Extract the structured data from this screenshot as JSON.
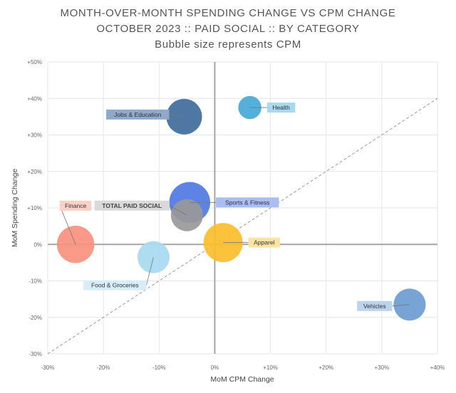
{
  "chart_data": {
    "type": "scatter",
    "title": "MONTH-OVER-MONTH SPENDING CHANGE VS CPM CHANGE",
    "subtitle": "OCTOBER 2023 :: PAID SOCIAL :: BY CATEGORY",
    "note": "Bubble size represents CPM",
    "xlabel": "MoM CPM Change",
    "ylabel": "MoM Spending Change",
    "xlim": [
      -30,
      40
    ],
    "ylim": [
      -30,
      50
    ],
    "x_ticks": [
      "-30%",
      "-20%",
      "-10%",
      "0%",
      "+10%",
      "+20%",
      "+30%",
      "+40%"
    ],
    "y_ticks": [
      "-30%",
      "-20%",
      "-10%",
      "0%",
      "+10%",
      "+20%",
      "+30%",
      "+40%",
      "+50%"
    ],
    "diagonal_reference": true,
    "points": [
      {
        "label": "Jobs & Education",
        "x": -5.5,
        "y": 35,
        "size": 20,
        "color": "#3f6b9b",
        "label_bg": "#8ea9c9",
        "label_side": "left"
      },
      {
        "label": "Health",
        "x": 6.3,
        "y": 37.5,
        "size": 13,
        "color": "#46a9d6",
        "label_bg": "#a9d9ee",
        "label_side": "right"
      },
      {
        "label": "Sports & Fitness",
        "x": -4.5,
        "y": 11.5,
        "size": 23,
        "color": "#4f78e3",
        "label_bg": "#a9bdf3",
        "label_side": "right"
      },
      {
        "label": "TOTAL PAID SOCIAL",
        "x": -5,
        "y": 8,
        "size": 18,
        "color": "#999999",
        "label_bg": "#d9d9d9",
        "label_side": "left"
      },
      {
        "label": "Finance",
        "x": -25,
        "y": 0,
        "size": 21,
        "color": "#f7917d",
        "label_bg": "#fbd0c6",
        "label_side": "above"
      },
      {
        "label": "Food & Groceries",
        "x": -11,
        "y": -3.5,
        "size": 18,
        "color": "#a7d9f0",
        "label_bg": "#d6eef9",
        "label_side": "below-left"
      },
      {
        "label": "Apparel",
        "x": 1.5,
        "y": 0.5,
        "size": 22,
        "color": "#fbbd2b",
        "label_bg": "#fde3a1",
        "label_side": "right"
      },
      {
        "label": "Vehicles",
        "x": 35,
        "y": -16.5,
        "size": 18,
        "color": "#6d9bd1",
        "label_bg": "#bcd3ee",
        "label_side": "left"
      }
    ]
  }
}
